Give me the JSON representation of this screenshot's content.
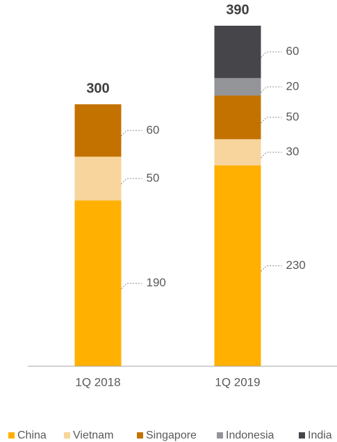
{
  "chart_data": {
    "type": "stacked_bar",
    "categories": [
      "1Q 2018",
      "1Q 2019"
    ],
    "series": [
      {
        "name": "China",
        "color": "#FFB000",
        "values": [
          190,
          230
        ]
      },
      {
        "name": "Vietnam",
        "color": "#F7D59C",
        "values": [
          50,
          30
        ]
      },
      {
        "name": "Singapore",
        "color": "#C37200",
        "values": [
          60,
          50
        ]
      },
      {
        "name": "Indonesia",
        "color": "#939598",
        "values": [
          null,
          20
        ]
      },
      {
        "name": "India",
        "color": "#46464A",
        "values": [
          null,
          60
        ]
      }
    ],
    "totals": [
      300,
      390
    ],
    "legend": "bottom"
  }
}
